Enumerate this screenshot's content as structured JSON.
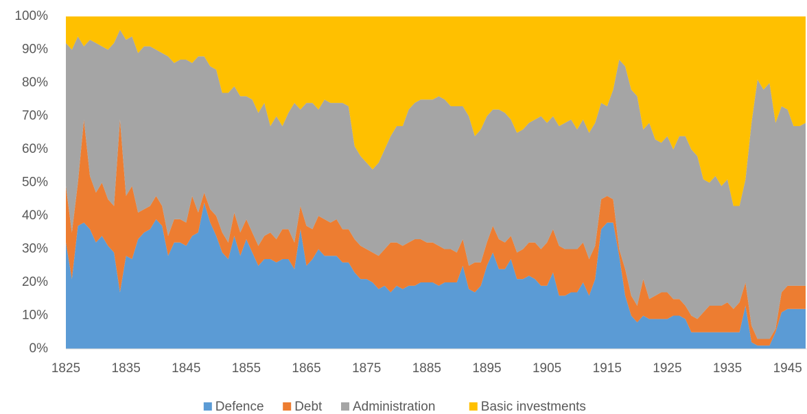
{
  "chart_data": {
    "type": "stacked_area_percent",
    "x": [
      1825,
      1826,
      1827,
      1828,
      1829,
      1830,
      1831,
      1832,
      1833,
      1834,
      1835,
      1836,
      1837,
      1838,
      1839,
      1840,
      1841,
      1842,
      1843,
      1844,
      1845,
      1846,
      1847,
      1848,
      1849,
      1850,
      1851,
      1852,
      1853,
      1854,
      1855,
      1856,
      1857,
      1858,
      1859,
      1860,
      1861,
      1862,
      1863,
      1864,
      1865,
      1866,
      1867,
      1868,
      1869,
      1870,
      1871,
      1872,
      1873,
      1874,
      1875,
      1876,
      1877,
      1878,
      1879,
      1880,
      1881,
      1882,
      1883,
      1884,
      1885,
      1886,
      1887,
      1888,
      1889,
      1890,
      1891,
      1892,
      1893,
      1894,
      1895,
      1896,
      1897,
      1898,
      1899,
      1900,
      1901,
      1902,
      1903,
      1904,
      1905,
      1906,
      1907,
      1908,
      1909,
      1910,
      1911,
      1912,
      1913,
      1914,
      1915,
      1916,
      1917,
      1918,
      1919,
      1920,
      1921,
      1922,
      1923,
      1924,
      1925,
      1926,
      1927,
      1928,
      1929,
      1930,
      1931,
      1932,
      1933,
      1934,
      1935,
      1936,
      1937,
      1938,
      1939,
      1940,
      1941,
      1942,
      1943,
      1944,
      1945,
      1946,
      1947,
      1948
    ],
    "series": [
      {
        "name": "Defence",
        "color": "#5b9bd5",
        "values": [
          32,
          21,
          37,
          38,
          36,
          32,
          34,
          31,
          29,
          17,
          28,
          27,
          33,
          35,
          36,
          39,
          37,
          28,
          32,
          32,
          31,
          34,
          35,
          44,
          38,
          34,
          29,
          27,
          34,
          28,
          33,
          29,
          25,
          27,
          27,
          26,
          27,
          27,
          24,
          36,
          25,
          27,
          30,
          28,
          28,
          28,
          26,
          26,
          23,
          21,
          21,
          20,
          18,
          19,
          17,
          19,
          18,
          19,
          19,
          20,
          20,
          20,
          19,
          20,
          20,
          20,
          25,
          18,
          17,
          19,
          25,
          29,
          24,
          24,
          27,
          21,
          21,
          22,
          21,
          19,
          19,
          23,
          16,
          16,
          17,
          17,
          20,
          16,
          21,
          36,
          38,
          38,
          28,
          16,
          10,
          8,
          10,
          9,
          9,
          9,
          9,
          10,
          10,
          9,
          5,
          5,
          5,
          5,
          5,
          5,
          5,
          5,
          5,
          13,
          2,
          1,
          1,
          1,
          5,
          11,
          12,
          12,
          12,
          12
        ]
      },
      {
        "name": "Debt",
        "color": "#ed7d31",
        "values": [
          17,
          14,
          13,
          31,
          16,
          15,
          16,
          14,
          14,
          52,
          18,
          22,
          8,
          7,
          7,
          7,
          6,
          6,
          7,
          7,
          7,
          12,
          6,
          3,
          4,
          6,
          6,
          5,
          7,
          7,
          6,
          6,
          6,
          7,
          8,
          7,
          9,
          9,
          8,
          7,
          12,
          9,
          10,
          11,
          10,
          11,
          10,
          10,
          10,
          10,
          9,
          9,
          10,
          11,
          15,
          13,
          13,
          13,
          14,
          13,
          12,
          12,
          12,
          10,
          10,
          9,
          8,
          7,
          9,
          7,
          7,
          8,
          9,
          8,
          7,
          8,
          9,
          10,
          11,
          11,
          13,
          13,
          15,
          14,
          13,
          13,
          12,
          11,
          10,
          9,
          8,
          7,
          2,
          8,
          6,
          5,
          11,
          6,
          7,
          8,
          8,
          5,
          5,
          4,
          5,
          4,
          6,
          8,
          8,
          8,
          9,
          7,
          9,
          7,
          5,
          2,
          2,
          2,
          1,
          6,
          7,
          7,
          7,
          7
        ]
      },
      {
        "name": "Administration",
        "color": "#a5a5a5",
        "values": [
          43,
          55,
          44,
          22,
          41,
          45,
          41,
          45,
          49,
          27,
          47,
          45,
          48,
          49,
          48,
          44,
          46,
          54,
          47,
          48,
          49,
          40,
          47,
          41,
          43,
          44,
          42,
          45,
          38,
          41,
          37,
          40,
          40,
          40,
          32,
          37,
          31,
          35,
          42,
          29,
          37,
          38,
          32,
          36,
          36,
          35,
          38,
          37,
          28,
          27,
          26,
          25,
          28,
          30,
          32,
          35,
          36,
          40,
          41,
          42,
          43,
          43,
          45,
          45,
          43,
          44,
          40,
          45,
          38,
          40,
          38,
          35,
          39,
          39,
          35,
          36,
          36,
          36,
          37,
          40,
          36,
          34,
          36,
          38,
          39,
          36,
          37,
          38,
          37,
          29,
          27,
          33,
          57,
          61,
          62,
          63,
          45,
          53,
          47,
          45,
          47,
          45,
          49,
          51,
          50,
          49,
          40,
          37,
          39,
          36,
          37,
          31,
          29,
          31,
          61,
          78,
          75,
          77,
          62,
          56,
          53,
          48,
          48,
          49
        ]
      },
      {
        "name": "Basic investments",
        "color": "#ffc000",
        "values": [
          8,
          10,
          6,
          9,
          7,
          8,
          9,
          10,
          8,
          4,
          7,
          6,
          11,
          9,
          9,
          10,
          11,
          12,
          14,
          13,
          13,
          14,
          12,
          12,
          15,
          16,
          23,
          23,
          21,
          24,
          24,
          25,
          29,
          26,
          33,
          30,
          33,
          29,
          26,
          28,
          26,
          26,
          28,
          25,
          26,
          26,
          26,
          27,
          39,
          42,
          44,
          46,
          44,
          40,
          36,
          33,
          33,
          28,
          26,
          25,
          25,
          25,
          24,
          25,
          27,
          27,
          27,
          30,
          36,
          34,
          30,
          28,
          28,
          29,
          31,
          35,
          34,
          32,
          31,
          30,
          32,
          30,
          33,
          32,
          31,
          34,
          31,
          35,
          32,
          26,
          27,
          22,
          13,
          15,
          22,
          24,
          34,
          32,
          37,
          38,
          36,
          40,
          36,
          36,
          40,
          42,
          49,
          50,
          48,
          51,
          49,
          57,
          57,
          49,
          32,
          19,
          22,
          20,
          32,
          27,
          28,
          33,
          33,
          32
        ]
      }
    ],
    "xlim": [
      1825,
      1948
    ],
    "xticks": [
      1825,
      1835,
      1845,
      1855,
      1865,
      1875,
      1885,
      1895,
      1905,
      1915,
      1925,
      1935,
      1945
    ],
    "ylim": [
      0,
      100
    ],
    "yticks": [
      {
        "value": 0,
        "label": "0%"
      },
      {
        "value": 10,
        "label": "10%"
      },
      {
        "value": 20,
        "label": "20%"
      },
      {
        "value": 30,
        "label": "30%"
      },
      {
        "value": 40,
        "label": "40%"
      },
      {
        "value": 50,
        "label": "50%"
      },
      {
        "value": 60,
        "label": "60%"
      },
      {
        "value": 70,
        "label": "70%"
      },
      {
        "value": 80,
        "label": "80%"
      },
      {
        "value": 90,
        "label": "90%"
      },
      {
        "value": 100,
        "label": "100%"
      }
    ],
    "legend": "bottom"
  }
}
